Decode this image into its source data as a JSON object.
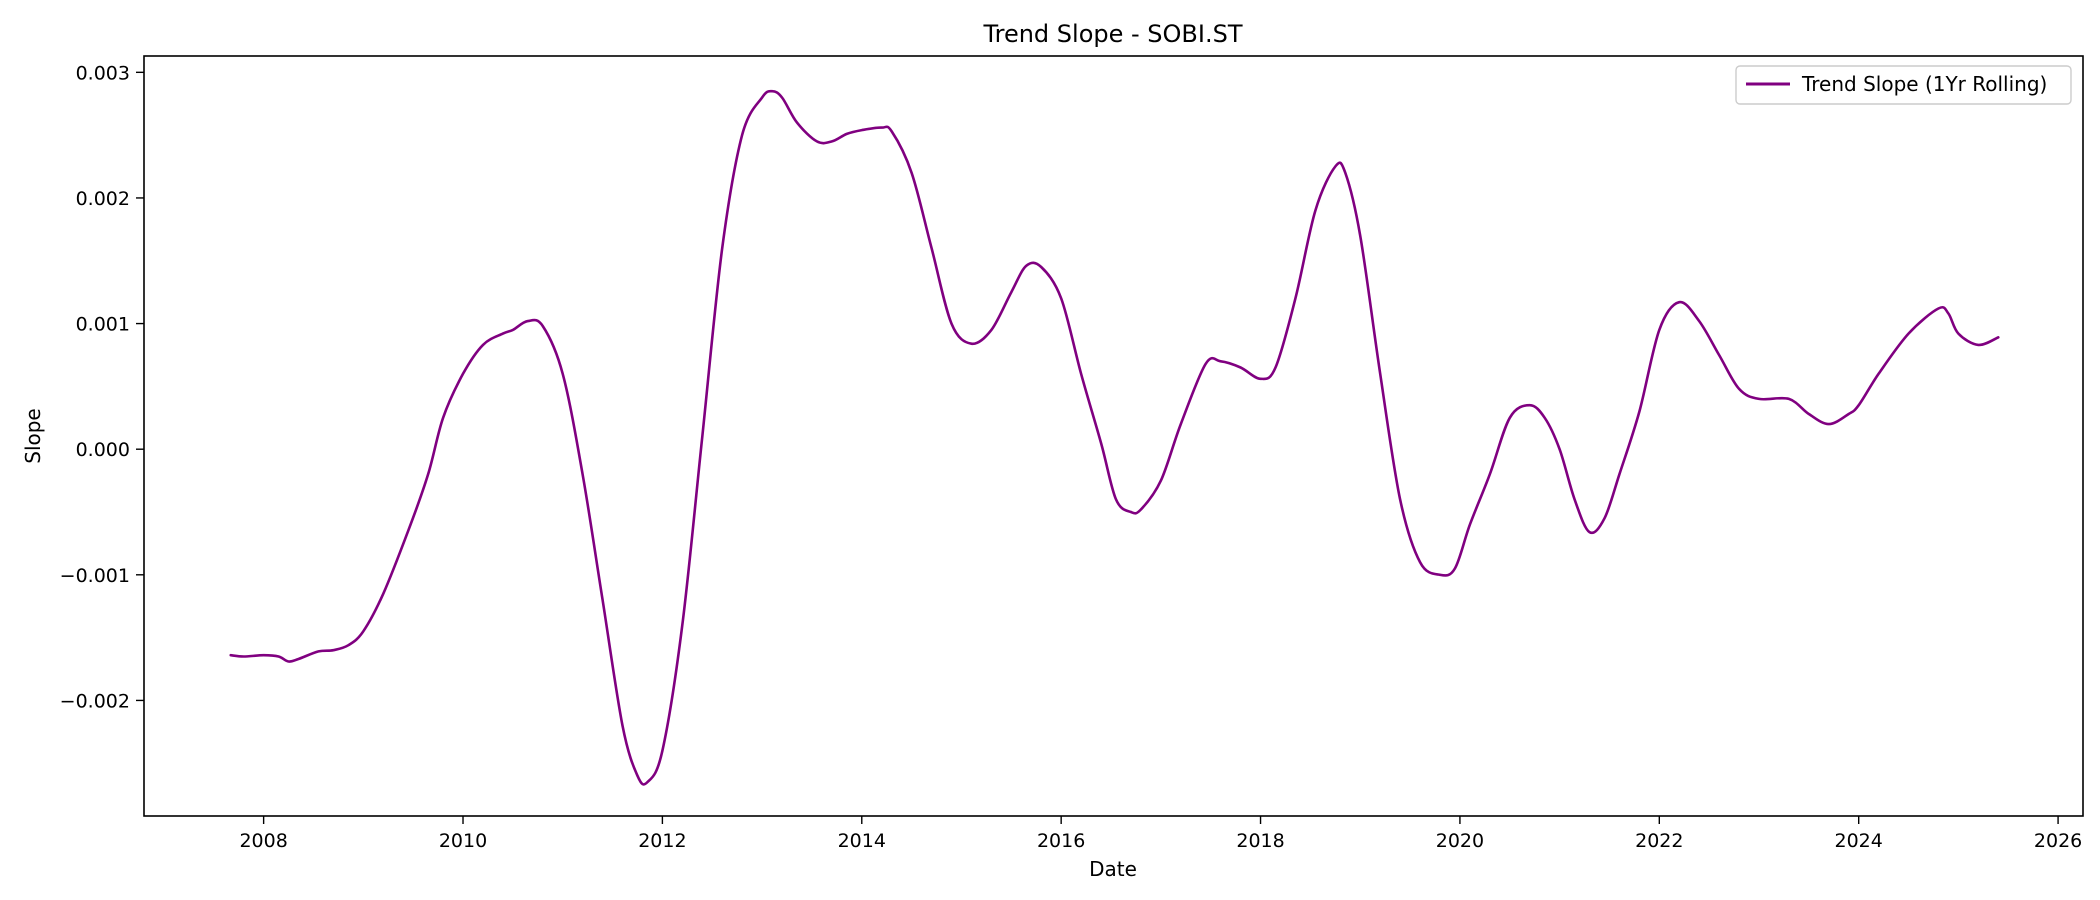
{
  "chart_data": {
    "type": "line",
    "title": "Trend Slope - SOBI.ST",
    "xlabel": "Date",
    "ylabel": "Slope",
    "xlim": [
      2006.8,
      2026.25
    ],
    "ylim": [
      -0.00292,
      0.00313
    ],
    "x_ticks": [
      2008,
      2010,
      2012,
      2014,
      2016,
      2018,
      2020,
      2022,
      2024,
      2026
    ],
    "x_tick_labels": [
      "2008",
      "2010",
      "2012",
      "2014",
      "2016",
      "2018",
      "2020",
      "2022",
      "2024",
      "2026"
    ],
    "y_ticks": [
      -0.002,
      -0.001,
      0.0,
      0.001,
      0.002,
      0.003
    ],
    "y_tick_labels": [
      "−0.002",
      "−0.001",
      "0.000",
      "0.001",
      "0.002",
      "0.003"
    ],
    "grid": false,
    "legend": {
      "placement": "top-right",
      "entries": [
        "Trend Slope (1Yr Rolling)"
      ]
    },
    "series": [
      {
        "name": "Trend Slope (1Yr Rolling)",
        "color": "#800080",
        "x": [
          2007.67,
          2007.8,
          2008.0,
          2008.15,
          2008.25,
          2008.35,
          2008.55,
          2008.7,
          2008.85,
          2009.0,
          2009.2,
          2009.45,
          2009.65,
          2009.8,
          2010.0,
          2010.2,
          2010.4,
          2010.5,
          2010.65,
          2010.8,
          2011.0,
          2011.2,
          2011.4,
          2011.6,
          2011.75,
          2011.85,
          2012.0,
          2012.2,
          2012.4,
          2012.6,
          2012.8,
          2013.0,
          2013.1,
          2013.2,
          2013.35,
          2013.55,
          2013.7,
          2013.85,
          2014.0,
          2014.2,
          2014.3,
          2014.5,
          2014.7,
          2014.9,
          2015.1,
          2015.3,
          2015.5,
          2015.65,
          2015.8,
          2016.0,
          2016.2,
          2016.4,
          2016.55,
          2016.7,
          2016.8,
          2017.0,
          2017.2,
          2017.45,
          2017.6,
          2017.8,
          2018.0,
          2018.15,
          2018.35,
          2018.55,
          2018.75,
          2018.85,
          2019.0,
          2019.2,
          2019.4,
          2019.6,
          2019.8,
          2019.95,
          2020.1,
          2020.3,
          2020.5,
          2020.7,
          2020.85,
          2021.0,
          2021.15,
          2021.3,
          2021.45,
          2021.6,
          2021.8,
          2022.0,
          2022.2,
          2022.4,
          2022.6,
          2022.8,
          2023.0,
          2023.3,
          2023.5,
          2023.7,
          2023.9,
          2024.0,
          2024.2,
          2024.5,
          2024.8,
          2024.9,
          2025.0,
          2025.2,
          2025.4
        ],
        "y": [
          -0.00164,
          -0.00165,
          -0.00164,
          -0.00165,
          -0.00169,
          -0.00167,
          -0.00161,
          -0.0016,
          -0.00156,
          -0.00145,
          -0.00115,
          -0.00065,
          -0.0002,
          0.00025,
          0.0006,
          0.00083,
          0.00092,
          0.00095,
          0.00102,
          0.00098,
          0.0006,
          -0.0002,
          -0.0012,
          -0.0022,
          -0.0026,
          -0.00265,
          -0.0024,
          -0.0014,
          0.0001,
          0.0016,
          0.0025,
          0.0028,
          0.00285,
          0.0028,
          0.0026,
          0.00245,
          0.00245,
          0.00251,
          0.00254,
          0.00256,
          0.00253,
          0.0022,
          0.0016,
          0.001,
          0.00084,
          0.00095,
          0.00125,
          0.00146,
          0.00145,
          0.0012,
          0.0006,
          5e-05,
          -0.0004,
          -0.0005,
          -0.00048,
          -0.00025,
          0.0002,
          0.00068,
          0.0007,
          0.00065,
          0.00056,
          0.00065,
          0.0012,
          0.0019,
          0.00225,
          0.0022,
          0.0017,
          0.0006,
          -0.0004,
          -0.0009,
          -0.001,
          -0.00095,
          -0.0006,
          -0.0002,
          0.00025,
          0.00035,
          0.00025,
          0.0,
          -0.0004,
          -0.00066,
          -0.00055,
          -0.0002,
          0.0003,
          0.00095,
          0.00117,
          0.00102,
          0.00075,
          0.00048,
          0.0004,
          0.0004,
          0.00028,
          0.0002,
          0.00028,
          0.00035,
          0.0006,
          0.00092,
          0.00112,
          0.00108,
          0.00092,
          0.00083,
          0.00089
        ]
      }
    ]
  }
}
